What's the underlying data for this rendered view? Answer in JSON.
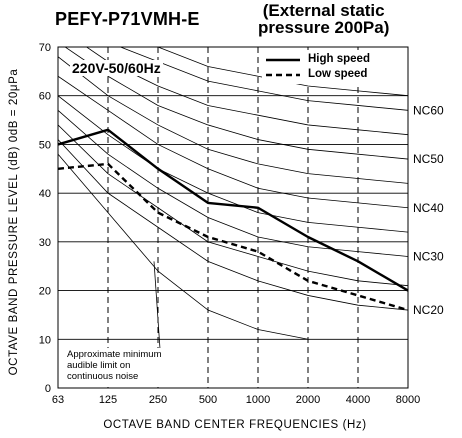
{
  "header": {
    "model": "PEFY-P71VMH-E",
    "pressure_line1": "(External static",
    "pressure_line2": "pressure 200Pa)",
    "voltage": "220V-50/60Hz"
  },
  "chart_data": {
    "type": "line",
    "xlabel": "OCTAVE  BAND  CENTER  FREQUENCIES (Hz)",
    "ylabel": "OCTAVE  BAND  PRESSURE  LEVEL (dB) 0dB = 20μPa",
    "x": [
      "63",
      "125",
      "250",
      "500",
      "1000",
      "2000",
      "4000",
      "8000"
    ],
    "ylim": [
      0,
      70
    ],
    "yticks": [
      0,
      10,
      20,
      30,
      40,
      50,
      60,
      70
    ],
    "grid": true,
    "legend_position": "top-right",
    "series": [
      {
        "name": "High speed",
        "style": "solid",
        "values": [
          50,
          53,
          45,
          38,
          37,
          31,
          26,
          20
        ]
      },
      {
        "name": "Low speed",
        "style": "dashed",
        "values": [
          45,
          46,
          36,
          31,
          28,
          22,
          19,
          16
        ]
      }
    ],
    "nc_curves": [
      {
        "label": "NC60",
        "values": [
          77,
          71,
          67,
          63,
          61,
          59,
          58,
          57
        ]
      },
      {
        "label": "NC50",
        "values": [
          71,
          64,
          58,
          54,
          51,
          49,
          48,
          47
        ]
      },
      {
        "label": "NC40",
        "values": [
          64,
          57,
          50,
          45,
          41,
          39,
          38,
          37
        ]
      },
      {
        "label": "NC30",
        "values": [
          57,
          48,
          41,
          35,
          31,
          29,
          28,
          27
        ]
      },
      {
        "label": "NC20",
        "values": [
          51,
          40,
          33,
          26,
          22,
          19,
          17,
          16
        ]
      }
    ],
    "extra_curves": [
      {
        "values": [
          80,
          74,
          70,
          66,
          64,
          62,
          61,
          60
        ]
      },
      {
        "values": [
          74,
          67,
          62,
          58,
          56,
          54,
          53,
          52
        ]
      },
      {
        "values": [
          68,
          60,
          54,
          49,
          46,
          44,
          43,
          42
        ]
      },
      {
        "values": [
          60,
          52,
          45,
          40,
          36,
          34,
          33,
          32
        ]
      },
      {
        "values": [
          54,
          44,
          37,
          30,
          27,
          24,
          22,
          21
        ]
      }
    ],
    "threshold_curve": {
      "annotation": [
        "Approximate minimum",
        "audible limit on",
        "continuous noise"
      ],
      "values": [
        48,
        36,
        24,
        16,
        12,
        10
      ]
    }
  }
}
